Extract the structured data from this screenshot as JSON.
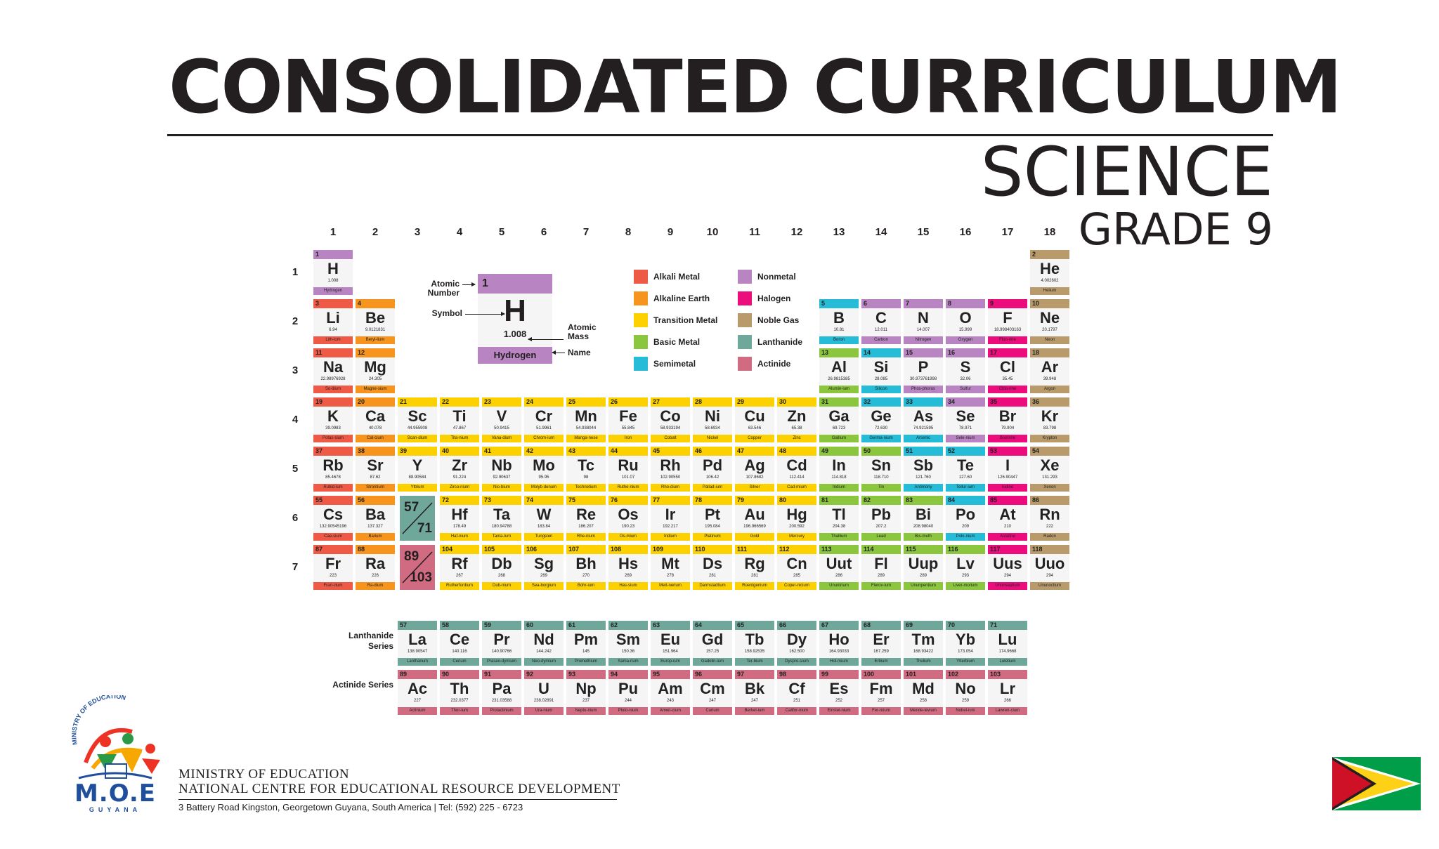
{
  "header": {
    "title": "CONSOLIDATED CURRICULUM",
    "subtitle": "SCIENCE",
    "grade": "GRADE 9"
  },
  "colors": {
    "alkali": "#ef5a47",
    "alkaline": "#f7941d",
    "transition": "#fdd100",
    "basic": "#8cc63f",
    "semimetal": "#26bcd7",
    "nonmetal": "#b884c1",
    "halogen": "#ec0c7c",
    "noble": "#b99a6b",
    "lanthanide": "#6fa89a",
    "actinide": "#d06b82"
  },
  "groups": [
    "1",
    "2",
    "3",
    "4",
    "5",
    "6",
    "7",
    "8",
    "9",
    "10",
    "11",
    "12",
    "13",
    "14",
    "15",
    "16",
    "17",
    "18"
  ],
  "periods": [
    "1",
    "2",
    "3",
    "4",
    "5",
    "6",
    "7"
  ],
  "key": {
    "number": "1",
    "symbol": "H",
    "mass": "1.008",
    "name": "Hydrogen",
    "label_number": "Atomic Number",
    "label_symbol": "Symbol",
    "label_mass": "Atomic Mass",
    "label_name": "Name"
  },
  "legend": [
    {
      "label": "Alkali Metal",
      "cat": "alkali"
    },
    {
      "label": "Alkaline Earth",
      "cat": "alkaline"
    },
    {
      "label": "Transition Metal",
      "cat": "transition"
    },
    {
      "label": "Basic Metal",
      "cat": "basic"
    },
    {
      "label": "Semimetal",
      "cat": "semimetal"
    },
    {
      "label": "Nonmetal",
      "cat": "nonmetal"
    },
    {
      "label": "Halogen",
      "cat": "halogen"
    },
    {
      "label": "Noble Gas",
      "cat": "noble"
    },
    {
      "label": "Lanthanide",
      "cat": "lanthanide"
    },
    {
      "label": "Actinide",
      "cat": "actinide"
    }
  ],
  "placeholders": [
    {
      "top": "57",
      "bottom": "71",
      "cat": "lanthanide",
      "g": 3,
      "p": 6
    },
    {
      "top": "89",
      "bottom": "103",
      "cat": "actinide",
      "g": 3,
      "p": 7
    }
  ],
  "series_labels": {
    "lanthanide": "Lanthanide Series",
    "actinide": "Actinide Series"
  },
  "elements": [
    {
      "n": "1",
      "s": "H",
      "m": "1.008",
      "nm": "Hydrogen",
      "c": "nonmetal",
      "g": 1,
      "p": 1
    },
    {
      "n": "2",
      "s": "He",
      "m": "4.002602",
      "nm": "Helium",
      "c": "noble",
      "g": 18,
      "p": 1
    },
    {
      "n": "3",
      "s": "Li",
      "m": "6.94",
      "nm": "Lith-ium",
      "c": "alkali",
      "g": 1,
      "p": 2
    },
    {
      "n": "4",
      "s": "Be",
      "m": "9.0121831",
      "nm": "Beryl-lium",
      "c": "alkaline",
      "g": 2,
      "p": 2
    },
    {
      "n": "5",
      "s": "B",
      "m": "10.81",
      "nm": "Boron",
      "c": "semimetal",
      "g": 13,
      "p": 2
    },
    {
      "n": "6",
      "s": "C",
      "m": "12.011",
      "nm": "Carbon",
      "c": "nonmetal",
      "g": 14,
      "p": 2
    },
    {
      "n": "7",
      "s": "N",
      "m": "14.007",
      "nm": "Nitrogen",
      "c": "nonmetal",
      "g": 15,
      "p": 2
    },
    {
      "n": "8",
      "s": "O",
      "m": "15.999",
      "nm": "Oxygen",
      "c": "nonmetal",
      "g": 16,
      "p": 2
    },
    {
      "n": "9",
      "s": "F",
      "m": "18.998403163",
      "nm": "Fluo-rine",
      "c": "halogen",
      "g": 17,
      "p": 2
    },
    {
      "n": "10",
      "s": "Ne",
      "m": "20.1797",
      "nm": "Neon",
      "c": "noble",
      "g": 18,
      "p": 2
    },
    {
      "n": "11",
      "s": "Na",
      "m": "22.98976928",
      "nm": "So-dium",
      "c": "alkali",
      "g": 1,
      "p": 3
    },
    {
      "n": "12",
      "s": "Mg",
      "m": "24.305",
      "nm": "Magne-sium",
      "c": "alkaline",
      "g": 2,
      "p": 3
    },
    {
      "n": "13",
      "s": "Al",
      "m": "26.9815385",
      "nm": "Alumin-ium",
      "c": "basic",
      "g": 13,
      "p": 3
    },
    {
      "n": "14",
      "s": "Si",
      "m": "28.085",
      "nm": "Silicon",
      "c": "semimetal",
      "g": 14,
      "p": 3
    },
    {
      "n": "15",
      "s": "P",
      "m": "30.973761998",
      "nm": "Phos-phorus",
      "c": "nonmetal",
      "g": 15,
      "p": 3
    },
    {
      "n": "16",
      "s": "S",
      "m": "32.06",
      "nm": "Sulfur",
      "c": "nonmetal",
      "g": 16,
      "p": 3
    },
    {
      "n": "17",
      "s": "Cl",
      "m": "35.45",
      "nm": "Chlo-rine",
      "c": "halogen",
      "g": 17,
      "p": 3
    },
    {
      "n": "18",
      "s": "Ar",
      "m": "39.948",
      "nm": "Argon",
      "c": "noble",
      "g": 18,
      "p": 3
    },
    {
      "n": "19",
      "s": "K",
      "m": "39.0983",
      "nm": "Potas-sium",
      "c": "alkali",
      "g": 1,
      "p": 4
    },
    {
      "n": "20",
      "s": "Ca",
      "m": "40.078",
      "nm": "Cal-cium",
      "c": "alkaline",
      "g": 2,
      "p": 4
    },
    {
      "n": "21",
      "s": "Sc",
      "m": "44.955908",
      "nm": "Scan-dium",
      "c": "transition",
      "g": 3,
      "p": 4
    },
    {
      "n": "22",
      "s": "Ti",
      "m": "47.867",
      "nm": "Tita-nium",
      "c": "transition",
      "g": 4,
      "p": 4
    },
    {
      "n": "23",
      "s": "V",
      "m": "50.9415",
      "nm": "Vana-dium",
      "c": "transition",
      "g": 5,
      "p": 4
    },
    {
      "n": "24",
      "s": "Cr",
      "m": "51.9961",
      "nm": "Chrom-ium",
      "c": "transition",
      "g": 6,
      "p": 4
    },
    {
      "n": "25",
      "s": "Mn",
      "m": "54.938044",
      "nm": "Manga-nese",
      "c": "transition",
      "g": 7,
      "p": 4
    },
    {
      "n": "26",
      "s": "Fe",
      "m": "55.845",
      "nm": "Iron",
      "c": "transition",
      "g": 8,
      "p": 4
    },
    {
      "n": "27",
      "s": "Co",
      "m": "58.933194",
      "nm": "Cobalt",
      "c": "transition",
      "g": 9,
      "p": 4
    },
    {
      "n": "28",
      "s": "Ni",
      "m": "58.6934",
      "nm": "Nickel",
      "c": "transition",
      "g": 10,
      "p": 4
    },
    {
      "n": "29",
      "s": "Cu",
      "m": "63.546",
      "nm": "Copper",
      "c": "transition",
      "g": 11,
      "p": 4
    },
    {
      "n": "30",
      "s": "Zn",
      "m": "65.38",
      "nm": "Zinc",
      "c": "transition",
      "g": 12,
      "p": 4
    },
    {
      "n": "31",
      "s": "Ga",
      "m": "69.723",
      "nm": "Gallium",
      "c": "basic",
      "g": 13,
      "p": 4
    },
    {
      "n": "32",
      "s": "Ge",
      "m": "72.630",
      "nm": "Germa-nium",
      "c": "semimetal",
      "g": 14,
      "p": 4
    },
    {
      "n": "33",
      "s": "As",
      "m": "74.921595",
      "nm": "Arsenic",
      "c": "semimetal",
      "g": 15,
      "p": 4
    },
    {
      "n": "34",
      "s": "Se",
      "m": "78.971",
      "nm": "Sele-nium",
      "c": "nonmetal",
      "g": 16,
      "p": 4
    },
    {
      "n": "35",
      "s": "Br",
      "m": "79.904",
      "nm": "Bromine",
      "c": "halogen",
      "g": 17,
      "p": 4
    },
    {
      "n": "36",
      "s": "Kr",
      "m": "83.798",
      "nm": "Krypton",
      "c": "noble",
      "g": 18,
      "p": 4
    },
    {
      "n": "37",
      "s": "Rb",
      "m": "85.4678",
      "nm": "Rubid-ium",
      "c": "alkali",
      "g": 1,
      "p": 5
    },
    {
      "n": "38",
      "s": "Sr",
      "m": "87.62",
      "nm": "Strontium",
      "c": "alkaline",
      "g": 2,
      "p": 5
    },
    {
      "n": "39",
      "s": "Y",
      "m": "88.90584",
      "nm": "Yttrium",
      "c": "transition",
      "g": 3,
      "p": 5
    },
    {
      "n": "40",
      "s": "Zr",
      "m": "91.224",
      "nm": "Zirco-nium",
      "c": "transition",
      "g": 4,
      "p": 5
    },
    {
      "n": "41",
      "s": "Nb",
      "m": "92.90637",
      "nm": "Nio-bium",
      "c": "transition",
      "g": 5,
      "p": 5
    },
    {
      "n": "42",
      "s": "Mo",
      "m": "95.95",
      "nm": "Molyb-denum",
      "c": "transition",
      "g": 6,
      "p": 5
    },
    {
      "n": "43",
      "s": "Tc",
      "m": "98",
      "nm": "Technetium",
      "c": "transition",
      "g": 7,
      "p": 5
    },
    {
      "n": "44",
      "s": "Ru",
      "m": "101.07",
      "nm": "Ruthe-nium",
      "c": "transition",
      "g": 8,
      "p": 5
    },
    {
      "n": "45",
      "s": "Rh",
      "m": "102.90550",
      "nm": "Rho-dium",
      "c": "transition",
      "g": 9,
      "p": 5
    },
    {
      "n": "46",
      "s": "Pd",
      "m": "106.42",
      "nm": "Pallad-ium",
      "c": "transition",
      "g": 10,
      "p": 5
    },
    {
      "n": "47",
      "s": "Ag",
      "m": "107.8682",
      "nm": "Silver",
      "c": "transition",
      "g": 11,
      "p": 5
    },
    {
      "n": "48",
      "s": "Cd",
      "m": "112.414",
      "nm": "Cad-mium",
      "c": "transition",
      "g": 12,
      "p": 5
    },
    {
      "n": "49",
      "s": "In",
      "m": "114.818",
      "nm": "Indium",
      "c": "basic",
      "g": 13,
      "p": 5
    },
    {
      "n": "50",
      "s": "Sn",
      "m": "118.710",
      "nm": "Tin",
      "c": "basic",
      "g": 14,
      "p": 5
    },
    {
      "n": "51",
      "s": "Sb",
      "m": "121.760",
      "nm": "Antimony",
      "c": "semimetal",
      "g": 15,
      "p": 5
    },
    {
      "n": "52",
      "s": "Te",
      "m": "127.60",
      "nm": "Tellur-ium",
      "c": "semimetal",
      "g": 16,
      "p": 5
    },
    {
      "n": "53",
      "s": "I",
      "m": "126.90447",
      "nm": "Iodine",
      "c": "halogen",
      "g": 17,
      "p": 5
    },
    {
      "n": "54",
      "s": "Xe",
      "m": "131.293",
      "nm": "Xenon",
      "c": "noble",
      "g": 18,
      "p": 5
    },
    {
      "n": "55",
      "s": "Cs",
      "m": "132.90545196",
      "nm": "Cae-sium",
      "c": "alkali",
      "g": 1,
      "p": 6
    },
    {
      "n": "56",
      "s": "Ba",
      "m": "137.327",
      "nm": "Barium",
      "c": "alkaline",
      "g": 2,
      "p": 6
    },
    {
      "n": "72",
      "s": "Hf",
      "m": "178.49",
      "nm": "Haf-nium",
      "c": "transition",
      "g": 4,
      "p": 6
    },
    {
      "n": "73",
      "s": "Ta",
      "m": "180.94788",
      "nm": "Tanta-lum",
      "c": "transition",
      "g": 5,
      "p": 6
    },
    {
      "n": "74",
      "s": "W",
      "m": "183.84",
      "nm": "Tungsten",
      "c": "transition",
      "g": 6,
      "p": 6
    },
    {
      "n": "75",
      "s": "Re",
      "m": "186.207",
      "nm": "Rhe-nium",
      "c": "transition",
      "g": 7,
      "p": 6
    },
    {
      "n": "76",
      "s": "Os",
      "m": "190.23",
      "nm": "Os-mium",
      "c": "transition",
      "g": 8,
      "p": 6
    },
    {
      "n": "77",
      "s": "Ir",
      "m": "192.217",
      "nm": "Iridium",
      "c": "transition",
      "g": 9,
      "p": 6
    },
    {
      "n": "78",
      "s": "Pt",
      "m": "195.084",
      "nm": "Platinum",
      "c": "transition",
      "g": 10,
      "p": 6
    },
    {
      "n": "79",
      "s": "Au",
      "m": "196.966569",
      "nm": "Gold",
      "c": "transition",
      "g": 11,
      "p": 6
    },
    {
      "n": "80",
      "s": "Hg",
      "m": "200.592",
      "nm": "Mercury",
      "c": "transition",
      "g": 12,
      "p": 6
    },
    {
      "n": "81",
      "s": "Tl",
      "m": "204.38",
      "nm": "Thallium",
      "c": "basic",
      "g": 13,
      "p": 6
    },
    {
      "n": "82",
      "s": "Pb",
      "m": "207.2",
      "nm": "Lead",
      "c": "basic",
      "g": 14,
      "p": 6
    },
    {
      "n": "83",
      "s": "Bi",
      "m": "208.98040",
      "nm": "Bis-muth",
      "c": "basic",
      "g": 15,
      "p": 6
    },
    {
      "n": "84",
      "s": "Po",
      "m": "209",
      "nm": "Polo-nium",
      "c": "semimetal",
      "g": 16,
      "p": 6
    },
    {
      "n": "85",
      "s": "At",
      "m": "210",
      "nm": "Astatine",
      "c": "halogen",
      "g": 17,
      "p": 6
    },
    {
      "n": "86",
      "s": "Rn",
      "m": "222",
      "nm": "Radon",
      "c": "noble",
      "g": 18,
      "p": 6
    },
    {
      "n": "87",
      "s": "Fr",
      "m": "223",
      "nm": "Fran-cium",
      "c": "alkali",
      "g": 1,
      "p": 7
    },
    {
      "n": "88",
      "s": "Ra",
      "m": "226",
      "nm": "Ra-dium",
      "c": "alkaline",
      "g": 2,
      "p": 7
    },
    {
      "n": "104",
      "s": "Rf",
      "m": "267",
      "nm": "Rutherfordium",
      "c": "transition",
      "g": 4,
      "p": 7
    },
    {
      "n": "105",
      "s": "Db",
      "m": "268",
      "nm": "Dub-nium",
      "c": "transition",
      "g": 5,
      "p": 7
    },
    {
      "n": "106",
      "s": "Sg",
      "m": "269",
      "nm": "Sea-borgium",
      "c": "transition",
      "g": 6,
      "p": 7
    },
    {
      "n": "107",
      "s": "Bh",
      "m": "270",
      "nm": "Bohr-ium",
      "c": "transition",
      "g": 7,
      "p": 7
    },
    {
      "n": "108",
      "s": "Hs",
      "m": "269",
      "nm": "Has-sium",
      "c": "transition",
      "g": 8,
      "p": 7
    },
    {
      "n": "109",
      "s": "Mt",
      "m": "278",
      "nm": "Meit-nerium",
      "c": "transition",
      "g": 9,
      "p": 7
    },
    {
      "n": "110",
      "s": "Ds",
      "m": "281",
      "nm": "Darmstadtium",
      "c": "transition",
      "g": 10,
      "p": 7
    },
    {
      "n": "111",
      "s": "Rg",
      "m": "281",
      "nm": "Roentgenium",
      "c": "transition",
      "g": 11,
      "p": 7
    },
    {
      "n": "112",
      "s": "Cn",
      "m": "285",
      "nm": "Coper-nicium",
      "c": "transition",
      "g": 12,
      "p": 7
    },
    {
      "n": "113",
      "s": "Uut",
      "m": "286",
      "nm": "Ununtrium",
      "c": "basic",
      "g": 13,
      "p": 7
    },
    {
      "n": "114",
      "s": "Fl",
      "m": "289",
      "nm": "Flerov-ium",
      "c": "basic",
      "g": 14,
      "p": 7
    },
    {
      "n": "115",
      "s": "Uup",
      "m": "289",
      "nm": "Ununpentium",
      "c": "basic",
      "g": 15,
      "p": 7
    },
    {
      "n": "116",
      "s": "Lv",
      "m": "293",
      "nm": "Liver-morium",
      "c": "basic",
      "g": 16,
      "p": 7
    },
    {
      "n": "117",
      "s": "Uus",
      "m": "294",
      "nm": "Ununseptium",
      "c": "halogen",
      "g": 17,
      "p": 7
    },
    {
      "n": "118",
      "s": "Uuo",
      "m": "294",
      "nm": "Ununoctium",
      "c": "noble",
      "g": 18,
      "p": 7
    },
    {
      "n": "57",
      "s": "La",
      "m": "138.90547",
      "nm": "Lanthanum",
      "c": "lanthanide",
      "g": 3,
      "p": 9
    },
    {
      "n": "58",
      "s": "Ce",
      "m": "140.116",
      "nm": "Cerium",
      "c": "lanthanide",
      "g": 4,
      "p": 9
    },
    {
      "n": "59",
      "s": "Pr",
      "m": "140.90766",
      "nm": "Praseo-dymium",
      "c": "lanthanide",
      "g": 5,
      "p": 9
    },
    {
      "n": "60",
      "s": "Nd",
      "m": "144.242",
      "nm": "Neo-dymium",
      "c": "lanthanide",
      "g": 6,
      "p": 9
    },
    {
      "n": "61",
      "s": "Pm",
      "m": "145",
      "nm": "Promethium",
      "c": "lanthanide",
      "g": 7,
      "p": 9
    },
    {
      "n": "62",
      "s": "Sm",
      "m": "150.36",
      "nm": "Sama-rium",
      "c": "lanthanide",
      "g": 8,
      "p": 9
    },
    {
      "n": "63",
      "s": "Eu",
      "m": "151.964",
      "nm": "Europ-ium",
      "c": "lanthanide",
      "g": 9,
      "p": 9
    },
    {
      "n": "64",
      "s": "Gd",
      "m": "157.25",
      "nm": "Gadolin-ium",
      "c": "lanthanide",
      "g": 10,
      "p": 9
    },
    {
      "n": "65",
      "s": "Tb",
      "m": "158.92535",
      "nm": "Ter-bium",
      "c": "lanthanide",
      "g": 11,
      "p": 9
    },
    {
      "n": "66",
      "s": "Dy",
      "m": "162.500",
      "nm": "Dyspro-sium",
      "c": "lanthanide",
      "g": 12,
      "p": 9
    },
    {
      "n": "67",
      "s": "Ho",
      "m": "164.93033",
      "nm": "Hol-mium",
      "c": "lanthanide",
      "g": 13,
      "p": 9
    },
    {
      "n": "68",
      "s": "Er",
      "m": "167.259",
      "nm": "Erbium",
      "c": "lanthanide",
      "g": 14,
      "p": 9
    },
    {
      "n": "69",
      "s": "Tm",
      "m": "168.93422",
      "nm": "Thulium",
      "c": "lanthanide",
      "g": 15,
      "p": 9
    },
    {
      "n": "70",
      "s": "Yb",
      "m": "173.054",
      "nm": "Ytterbium",
      "c": "lanthanide",
      "g": 16,
      "p": 9
    },
    {
      "n": "71",
      "s": "Lu",
      "m": "174.9668",
      "nm": "Lutetium",
      "c": "lanthanide",
      "g": 17,
      "p": 9
    },
    {
      "n": "89",
      "s": "Ac",
      "m": "227",
      "nm": "Actinium",
      "c": "actinide",
      "g": 3,
      "p": 10
    },
    {
      "n": "90",
      "s": "Th",
      "m": "232.0377",
      "nm": "Thor-ium",
      "c": "actinide",
      "g": 4,
      "p": 10
    },
    {
      "n": "91",
      "s": "Pa",
      "m": "231.03588",
      "nm": "Protactinium",
      "c": "actinide",
      "g": 5,
      "p": 10
    },
    {
      "n": "92",
      "s": "U",
      "m": "238.02891",
      "nm": "Ura-nium",
      "c": "actinide",
      "g": 6,
      "p": 10
    },
    {
      "n": "93",
      "s": "Np",
      "m": "237",
      "nm": "Neptu-nium",
      "c": "actinide",
      "g": 7,
      "p": 10
    },
    {
      "n": "94",
      "s": "Pu",
      "m": "244",
      "nm": "Pluto-nium",
      "c": "actinide",
      "g": 8,
      "p": 10
    },
    {
      "n": "95",
      "s": "Am",
      "m": "243",
      "nm": "Ameri-cium",
      "c": "actinide",
      "g": 9,
      "p": 10
    },
    {
      "n": "96",
      "s": "Cm",
      "m": "247",
      "nm": "Curium",
      "c": "actinide",
      "g": 10,
      "p": 10
    },
    {
      "n": "97",
      "s": "Bk",
      "m": "247",
      "nm": "Berkel-ium",
      "c": "actinide",
      "g": 11,
      "p": 10
    },
    {
      "n": "98",
      "s": "Cf",
      "m": "251",
      "nm": "Califor-nium",
      "c": "actinide",
      "g": 12,
      "p": 10
    },
    {
      "n": "99",
      "s": "Es",
      "m": "252",
      "nm": "Einstei-nium",
      "c": "actinide",
      "g": 13,
      "p": 10
    },
    {
      "n": "100",
      "s": "Fm",
      "m": "257",
      "nm": "Fer-mium",
      "c": "actinide",
      "g": 14,
      "p": 10
    },
    {
      "n": "101",
      "s": "Md",
      "m": "258",
      "nm": "Mende-levium",
      "c": "actinide",
      "g": 15,
      "p": 10
    },
    {
      "n": "102",
      "s": "No",
      "m": "259",
      "nm": "Nobel-ium",
      "c": "actinide",
      "g": 16,
      "p": 10
    },
    {
      "n": "103",
      "s": "Lr",
      "m": "266",
      "nm": "Lawren-cium",
      "c": "actinide",
      "g": 17,
      "p": 10
    }
  ],
  "logo": {
    "arc_text": "MINISTRY OF EDUCATION",
    "initials": "M.O.E",
    "country": "GUYANA"
  },
  "footer": {
    "line1": "MINISTRY OF EDUCATION",
    "line2": "NATIONAL CENTRE FOR EDUCATIONAL RESOURCE DEVELOPMENT",
    "line3": "3 Battery Road Kingston, Georgetown Guyana, South America | Tel: (592) 225 - 6723"
  },
  "flag": {
    "green": "#009e49",
    "yellow": "#fcd116",
    "red": "#ce1126"
  }
}
